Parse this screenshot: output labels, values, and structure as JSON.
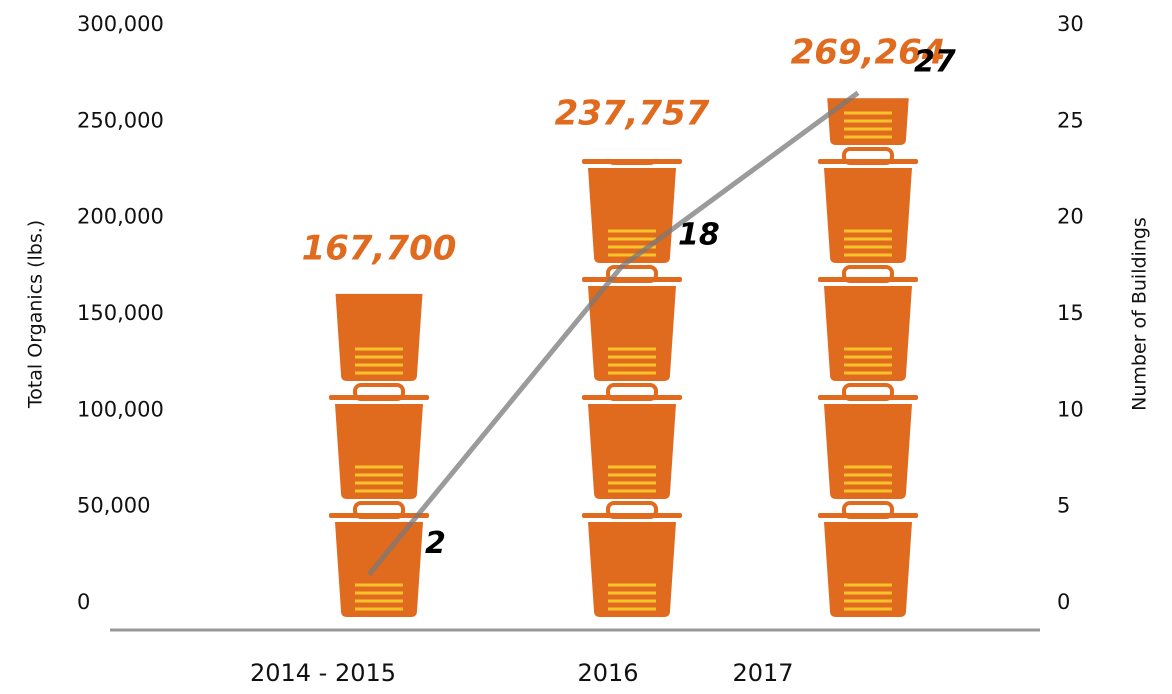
{
  "chart_data": {
    "type": "bar",
    "categories": [
      "2014 - 2015",
      "2016",
      "2017"
    ],
    "ylabel": "Total Organics (lbs.)",
    "y2label": "Number of Buildings",
    "series": [
      {
        "type": "bar",
        "color": "#e06a1e",
        "values": [
          167700,
          237757,
          269264
        ],
        "value_labels": [
          "167,700",
          "237,757",
          "269,264"
        ]
      },
      {
        "type": "line",
        "color": "#7a7a7a",
        "axis": "y2",
        "values": [
          2,
          18,
          27
        ]
      }
    ],
    "ylim": [
      0,
      300000
    ],
    "yticks": [
      0,
      {
        "value": 50000,
        "label": "50,000"
      },
      {
        "value": 100000,
        "label": "100,000"
      },
      {
        "value": 150000,
        "label": "150,000"
      },
      {
        "value": 200000,
        "label": "200,000"
      },
      {
        "value": 250000,
        "label": "250,000"
      },
      {
        "value": 300000,
        "label": "300,000"
      }
    ],
    "y2lim": [
      0,
      30
    ],
    "y2ticks": [
      0,
      5,
      10,
      15,
      20,
      25,
      30
    ]
  }
}
